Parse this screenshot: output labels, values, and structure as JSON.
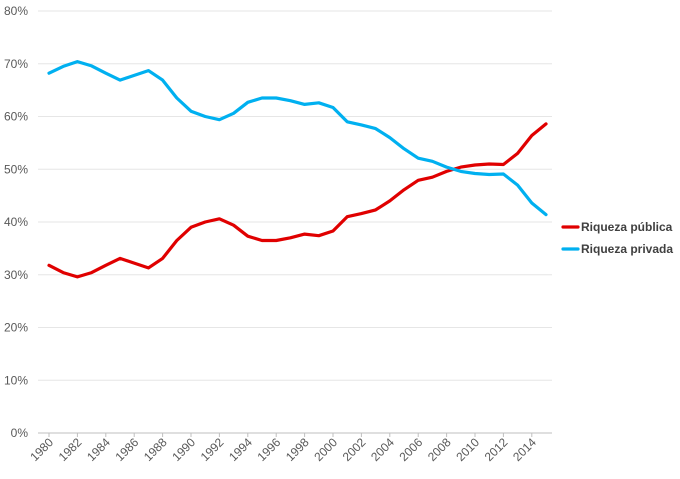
{
  "chart_data": {
    "type": "line",
    "x": [
      1980,
      1981,
      1982,
      1983,
      1984,
      1985,
      1986,
      1987,
      1988,
      1989,
      1990,
      1991,
      1992,
      1993,
      1994,
      1995,
      1996,
      1997,
      1998,
      1999,
      2000,
      2001,
      2002,
      2003,
      2004,
      2005,
      2006,
      2007,
      2008,
      2009,
      2010,
      2011,
      2012,
      2013,
      2014,
      2015
    ],
    "x_tick_labels": [
      "1980",
      "1982",
      "1984",
      "1986",
      "1988",
      "1990",
      "1992",
      "1994",
      "1996",
      "1998",
      "2000",
      "2002",
      "2004",
      "2006",
      "2008",
      "2010",
      "2012",
      "2014"
    ],
    "y_tick_labels": [
      "0%",
      "10%",
      "20%",
      "30%",
      "40%",
      "50%",
      "60%",
      "70%",
      "80%"
    ],
    "ylim": [
      0,
      80
    ],
    "y_unit": "%",
    "grid": "horizontal",
    "legend_position": "right",
    "series": [
      {
        "name": "Riqueza pública",
        "color": "#e00000",
        "values": [
          31.8,
          30.4,
          29.6,
          30.4,
          31.8,
          33.1,
          32.2,
          31.3,
          33.1,
          36.5,
          39.0,
          40.0,
          40.6,
          39.4,
          37.3,
          36.5,
          36.5,
          37.0,
          37.7,
          37.4,
          38.3,
          41.0,
          41.6,
          42.3,
          44.0,
          46.1,
          47.9,
          48.5,
          49.6,
          50.4,
          50.8,
          51.0,
          50.9,
          53.0,
          56.4,
          58.6
        ]
      },
      {
        "name": "Riqueza privada",
        "color": "#00b0f0",
        "values": [
          68.2,
          69.5,
          70.4,
          69.6,
          68.2,
          66.9,
          67.8,
          68.7,
          66.9,
          63.5,
          61.0,
          60.0,
          59.4,
          60.6,
          62.7,
          63.5,
          63.5,
          63.0,
          62.3,
          62.6,
          61.7,
          59.0,
          58.4,
          57.7,
          56.0,
          53.9,
          52.1,
          51.5,
          50.4,
          49.6,
          49.2,
          49.0,
          49.1,
          47.0,
          43.6,
          41.4
        ]
      }
    ]
  }
}
